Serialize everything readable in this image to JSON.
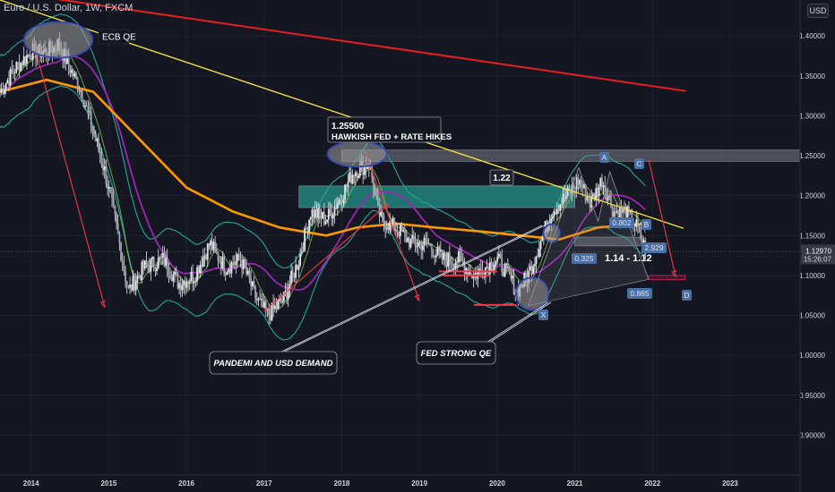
{
  "header": {
    "symbol": "Euro / U.S. Dollar",
    "timeframe": "1W",
    "exchange": "FXCM",
    "currency_button": "USD"
  },
  "price_label": {
    "value": "1.12970",
    "countdown": "15:26:07",
    "color": "#2a2e39"
  },
  "colors": {
    "background": "#141722",
    "candle": "#e6e6e6",
    "sma_orange": "#ff9800",
    "sma_purple": "#9c27b0",
    "sma_green": "#8bc34a",
    "bollinger": "#26a69a",
    "trendline_yellow": "#ffeb3b",
    "trendline_red": "#e91e1e",
    "arrow_red": "#f23645",
    "zone_teal": "#26a69a",
    "zone_gray": "#787b86",
    "highlight_blue": "#3949ab",
    "label_blue": "#4a6fa5"
  },
  "annotations": {
    "ecb_qe": "ECB QE",
    "hawkish_price": "1.25500",
    "hawkish_text": "HAWKISH FED  + RATE HIKES",
    "level_122": "1.22",
    "range_text": "1.14 - 1.12",
    "pandemic": "PANDEMI AND USD DEMAND",
    "fed_qe": "FED STRONG QE",
    "pt_a": "A",
    "pt_b": "B",
    "pt_c": "C",
    "pt_d": "D",
    "pt_x": "X",
    "ratio_0802": "0.802",
    "ratio_0325": "0.325",
    "ratio_2929": "2.929",
    "ratio_0865": "0.865"
  },
  "chart_data": {
    "type": "line",
    "title": "Euro / U.S. Dollar, 1W, FXCM",
    "x_ticks": [
      "2014",
      "2015",
      "2016",
      "2017",
      "2018",
      "2019",
      "2020",
      "2021",
      "2022",
      "2023"
    ],
    "y_ticks": [
      "1.40000",
      "1.35000",
      "1.30000",
      "1.25000",
      "1.20000",
      "1.15000",
      "1.10000",
      "1.05000",
      "1.00000",
      "0.95000",
      "0.90000"
    ],
    "ylim": [
      0.85,
      1.445
    ],
    "xlim": [
      2013.6,
      2023.9
    ],
    "last_price": 1.1297,
    "series": [
      {
        "name": "EUR/USD weekly close (approx.)",
        "x": [
          2013.6,
          2013.8,
          2014.0,
          2014.2,
          2014.35,
          2014.5,
          2014.65,
          2014.8,
          2014.95,
          2015.1,
          2015.25,
          2015.45,
          2015.7,
          2015.9,
          2016.1,
          2016.3,
          2016.5,
          2016.7,
          2016.9,
          2017.05,
          2017.25,
          2017.45,
          2017.6,
          2017.8,
          2018.0,
          2018.15,
          2018.35,
          2018.5,
          2018.7,
          2018.9,
          2019.1,
          2019.3,
          2019.5,
          2019.7,
          2019.85,
          2020.0,
          2020.15,
          2020.25,
          2020.4,
          2020.55,
          2020.7,
          2020.9,
          2021.05,
          2021.2,
          2021.35,
          2021.5,
          2021.65,
          2021.8,
          2021.92
        ],
        "y": [
          1.33,
          1.36,
          1.38,
          1.38,
          1.39,
          1.36,
          1.33,
          1.28,
          1.23,
          1.16,
          1.08,
          1.11,
          1.12,
          1.09,
          1.1,
          1.14,
          1.11,
          1.12,
          1.07,
          1.05,
          1.07,
          1.12,
          1.18,
          1.17,
          1.2,
          1.23,
          1.24,
          1.17,
          1.16,
          1.14,
          1.14,
          1.12,
          1.12,
          1.1,
          1.11,
          1.12,
          1.1,
          1.08,
          1.1,
          1.14,
          1.18,
          1.2,
          1.22,
          1.19,
          1.22,
          1.18,
          1.18,
          1.16,
          1.13
        ]
      },
      {
        "name": "200-week SMA (approx.)",
        "x": [
          2013.6,
          2014.2,
          2014.8,
          2015.4,
          2016.0,
          2016.6,
          2017.2,
          2017.8,
          2018.2,
          2018.7,
          2019.2,
          2019.8,
          2020.3,
          2020.8,
          2021.3,
          2021.92
        ],
        "y": [
          1.33,
          1.345,
          1.33,
          1.27,
          1.21,
          1.18,
          1.16,
          1.15,
          1.16,
          1.165,
          1.16,
          1.155,
          1.15,
          1.145,
          1.16,
          1.165
        ]
      },
      {
        "name": "Descending trendline (yellow)",
        "x": [
          2013.6,
          2022.4
        ],
        "y": [
          1.445,
          1.159
        ]
      },
      {
        "name": "Descending trendline (red)",
        "x": [
          2014.2,
          2022.43
        ],
        "y": [
          1.448,
          1.331
        ]
      }
    ],
    "zones": [
      {
        "label": "1.22",
        "from": 1.185,
        "to": 1.212,
        "x_from": 2017.45,
        "x_to": 2021.0
      },
      {
        "label": "1.25500",
        "from": 1.243,
        "to": 1.257,
        "x_from": 2018.0,
        "x_to": 2023.9
      },
      {
        "label": "1.14 - 1.12",
        "from": 1.137,
        "to": 1.148,
        "x_from": 2021.0,
        "x_to": 2021.85
      }
    ],
    "grid": true
  }
}
